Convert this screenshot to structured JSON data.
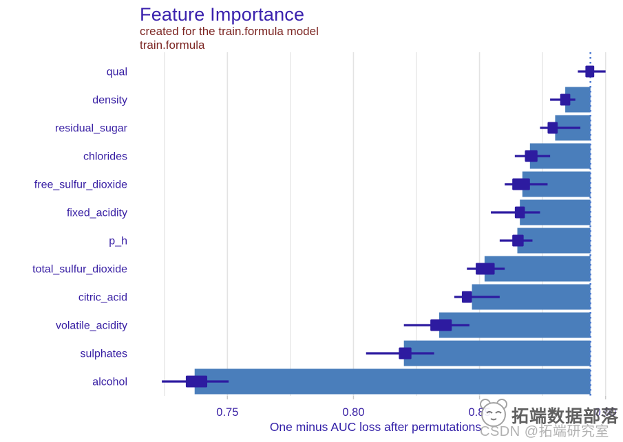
{
  "header": {
    "title": "Feature Importance",
    "subtitle_line1": "created for the train.formula model",
    "subtitle_line2": "train.formula"
  },
  "watermark": {
    "brand_text": "拓端数据部落",
    "csdn_text": "CSDN @拓端研究室",
    "logo_icon": "cartoon-face-logo"
  },
  "colors": {
    "title_text": "#3a21ad",
    "subtitle_text": "#7c2522",
    "axis_text": "#371ea3",
    "bar_fill": "#4a7ebb",
    "box_fill": "#2d1ba0",
    "gridline": "#e3e3e3",
    "tick_mark": "#c9c9c9",
    "dashed_line": "#4c7ad1",
    "watermark_dark": "#4b4b4b",
    "watermark_light": "#a9a9a9"
  },
  "chart_data": {
    "type": "bar",
    "subtype": "horizontal-bars-with-boxplots",
    "title": "Feature Importance",
    "subtitle": "created for the train.formula model / train.formula",
    "xlabel": "One minus AUC loss after permutations",
    "ylabel": "",
    "xlim": [
      0.7125,
      0.905
    ],
    "x_ticks": [
      0.75,
      0.8,
      0.85,
      0.9
    ],
    "x_tick_labels": [
      "0.75",
      "0.80",
      "0.85",
      "0.90"
    ],
    "x_minor_gridlines": [
      0.725,
      0.775,
      0.825,
      0.875
    ],
    "grid": "vertical-only",
    "legend": "none",
    "full_model_loss_line": 0.894,
    "categories": [
      "qual",
      "density",
      "residual_sugar",
      "chlorides",
      "free_sulfur_dioxide",
      "fixed_acidity",
      "p_h",
      "total_sulfur_dioxide",
      "citric_acid",
      "volatile_acidity",
      "sulphates",
      "alcohol"
    ],
    "rows": [
      {
        "feature": "qual",
        "dropout_loss": 0.894,
        "box": [
          0.892,
          0.8955
        ],
        "whiskers": [
          0.889,
          0.9
        ]
      },
      {
        "feature": "density",
        "dropout_loss": 0.884,
        "box": [
          0.882,
          0.886
        ],
        "whiskers": [
          0.878,
          0.888
        ]
      },
      {
        "feature": "residual_sugar",
        "dropout_loss": 0.88,
        "box": [
          0.877,
          0.881
        ],
        "whiskers": [
          0.874,
          0.89
        ]
      },
      {
        "feature": "chlorides",
        "dropout_loss": 0.87,
        "box": [
          0.868,
          0.873
        ],
        "whiskers": [
          0.864,
          0.878
        ]
      },
      {
        "feature": "free_sulfur_dioxide",
        "dropout_loss": 0.867,
        "box": [
          0.863,
          0.87
        ],
        "whiskers": [
          0.86,
          0.877
        ]
      },
      {
        "feature": "fixed_acidity",
        "dropout_loss": 0.866,
        "box": [
          0.864,
          0.868
        ],
        "whiskers": [
          0.8545,
          0.874
        ]
      },
      {
        "feature": "p_h",
        "dropout_loss": 0.865,
        "box": [
          0.863,
          0.8675
        ],
        "whiskers": [
          0.858,
          0.871
        ]
      },
      {
        "feature": "total_sulfur_dioxide",
        "dropout_loss": 0.852,
        "box": [
          0.8485,
          0.856
        ],
        "whiskers": [
          0.845,
          0.86
        ]
      },
      {
        "feature": "citric_acid",
        "dropout_loss": 0.847,
        "box": [
          0.843,
          0.847
        ],
        "whiskers": [
          0.84,
          0.858
        ]
      },
      {
        "feature": "volatile_acidity",
        "dropout_loss": 0.834,
        "box": [
          0.8305,
          0.839
        ],
        "whiskers": [
          0.82,
          0.846
        ]
      },
      {
        "feature": "sulphates",
        "dropout_loss": 0.82,
        "box": [
          0.818,
          0.823
        ],
        "whiskers": [
          0.805,
          0.832
        ]
      },
      {
        "feature": "alcohol",
        "dropout_loss": 0.737,
        "box": [
          0.7335,
          0.742
        ],
        "whiskers": [
          0.724,
          0.7505
        ]
      }
    ]
  }
}
